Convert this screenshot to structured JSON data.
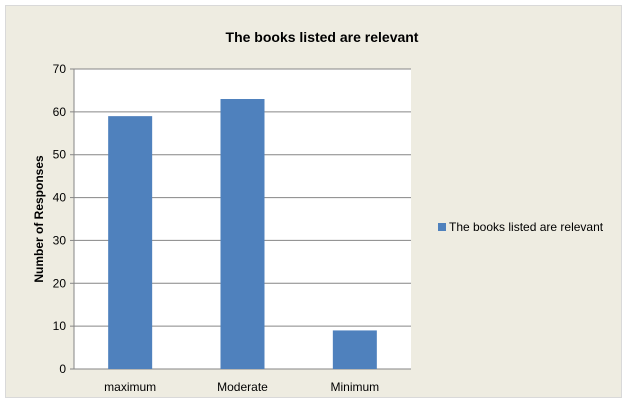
{
  "chart_data": {
    "type": "bar",
    "title": "The books listed are relevant",
    "xlabel": "",
    "ylabel": "Number of Responses",
    "categories": [
      "maximum",
      "Moderate",
      "Minimum"
    ],
    "series": [
      {
        "name": "The books listed are relevant",
        "values": [
          59,
          63,
          9
        ]
      }
    ],
    "ylim": [
      0,
      70
    ],
    "yticks": [
      0,
      10,
      20,
      30,
      40,
      50,
      60,
      70
    ],
    "grid": true,
    "legend_position": "right",
    "colors": {
      "bar": "#4f81bd",
      "background": "#eeece1",
      "plot_area": "#ffffff",
      "grid": "#868686"
    }
  }
}
